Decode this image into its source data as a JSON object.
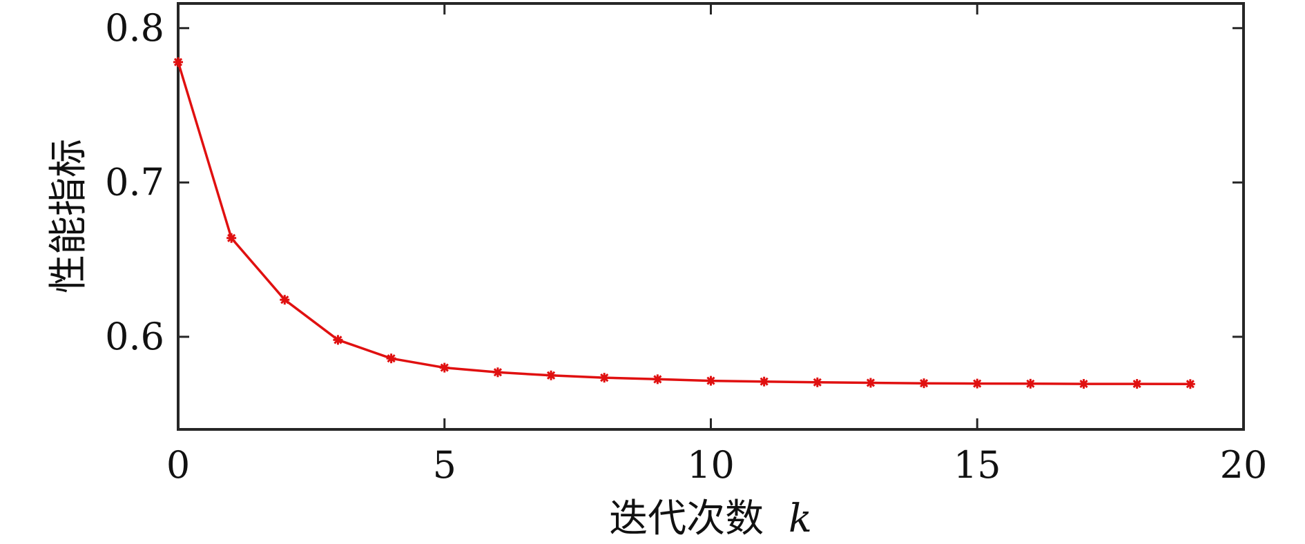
{
  "chart_data": {
    "type": "line",
    "title": "",
    "xlabel": "迭代次数",
    "xlabel_var": "k",
    "ylabel": "性能指标",
    "xlim": [
      0,
      20
    ],
    "ylim": [
      0.54,
      0.816
    ],
    "xticks": [
      0,
      5,
      10,
      15,
      20
    ],
    "xtick_labels": [
      "0",
      "5",
      "10",
      "15",
      "20"
    ],
    "yticks": [
      0.6,
      0.7,
      0.8
    ],
    "ytick_labels": [
      "0.6",
      "0.7",
      "0.8"
    ],
    "grid": false,
    "legend": "none",
    "series": [
      {
        "color": "#e01010",
        "marker": "asterisk",
        "x": [
          0,
          1,
          2,
          3,
          4,
          5,
          6,
          7,
          8,
          9,
          10,
          11,
          12,
          13,
          14,
          15,
          16,
          17,
          18,
          19
        ],
        "values": [
          0.778,
          0.664,
          0.624,
          0.598,
          0.586,
          0.58,
          0.577,
          0.575,
          0.5735,
          0.5725,
          0.5715,
          0.571,
          0.5705,
          0.5702,
          0.5699,
          0.5697,
          0.5696,
          0.5695,
          0.5695,
          0.5694
        ]
      }
    ]
  }
}
